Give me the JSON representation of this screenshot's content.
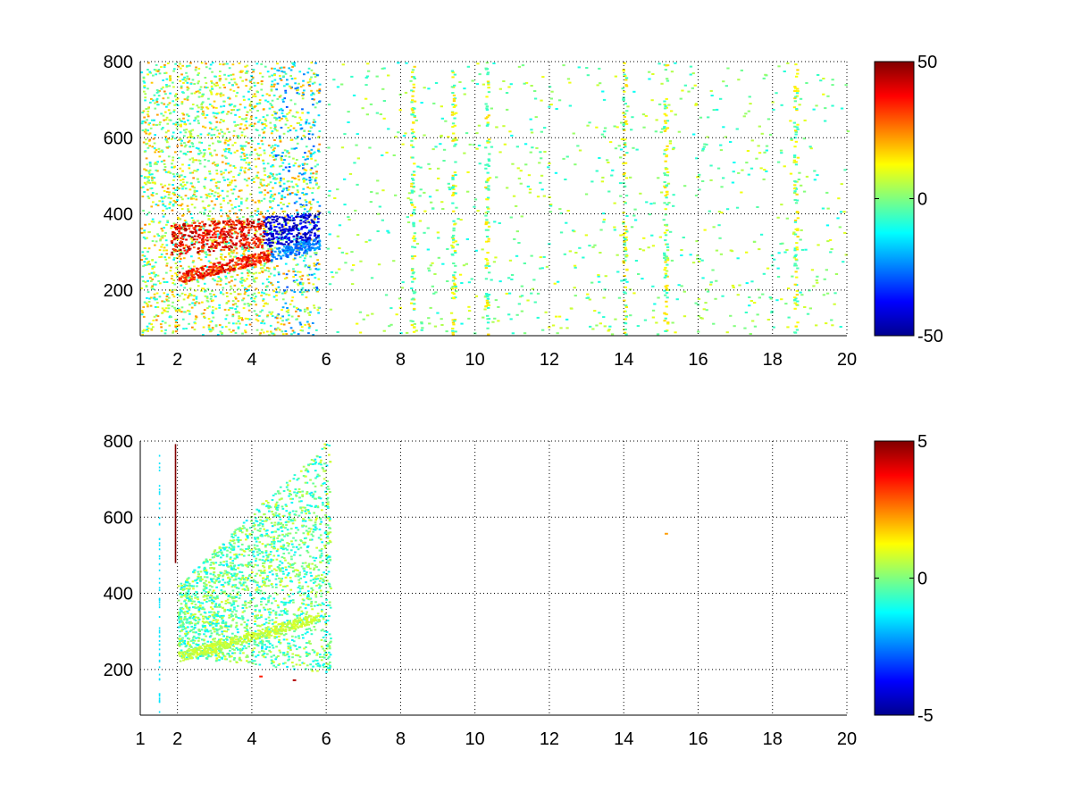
{
  "figure": {
    "background": "#ffffff",
    "colormap": "jet"
  },
  "chart_data": [
    {
      "type": "heatmap",
      "title": "",
      "xlabel": "",
      "ylabel": "",
      "xlim": [
        1,
        20
      ],
      "ylim": [
        80,
        800
      ],
      "x_ticks": [
        1,
        2,
        4,
        6,
        8,
        10,
        12,
        14,
        16,
        18,
        20
      ],
      "x_tick_labels": [
        "1",
        "2",
        "4",
        "6",
        "8",
        "10",
        "12",
        "14",
        "16",
        "18",
        "20"
      ],
      "y_ticks": [
        200,
        400,
        600,
        800
      ],
      "y_tick_labels": [
        "200",
        "400",
        "600",
        "800"
      ],
      "grid": true,
      "grid_style": "dotted",
      "colorbar": {
        "clim": [
          -50,
          50
        ],
        "tick_labels": [
          "50",
          "0",
          "-50"
        ],
        "tick_values": [
          50,
          0,
          -50
        ]
      },
      "features": {
        "upper_ridge": {
          "x_range": [
            1.8,
            5.8
          ],
          "y_center": 340,
          "value": 38,
          "sign_change_x": 4.3,
          "value_after": -42
        },
        "lower_ridge": {
          "x_range": [
            2.0,
            5.8
          ],
          "y_start": 230,
          "y_end": 320,
          "value": 35,
          "value_after": -25
        },
        "dense_noise_region": {
          "x_range": [
            1,
            6
          ],
          "y_range": [
            80,
            800
          ],
          "typical_value_range": [
            -15,
            25
          ]
        },
        "sparse_vertical_streaks": {
          "x_range": [
            6,
            20
          ],
          "typical_value_range": [
            -12,
            12
          ]
        },
        "notable_streaks_x": [
          15.1,
          18.6,
          14.0,
          10.3,
          8.3,
          9.4
        ]
      }
    },
    {
      "type": "heatmap",
      "title": "",
      "xlabel": "",
      "ylabel": "",
      "xlim": [
        1,
        20
      ],
      "ylim": [
        80,
        800
      ],
      "x_ticks": [
        1,
        2,
        4,
        6,
        8,
        10,
        12,
        14,
        16,
        18,
        20
      ],
      "x_tick_labels": [
        "1",
        "2",
        "4",
        "6",
        "8",
        "10",
        "12",
        "14",
        "16",
        "18",
        "20"
      ],
      "y_ticks": [
        200,
        400,
        600,
        800
      ],
      "y_tick_labels": [
        "200",
        "400",
        "600",
        "800"
      ],
      "grid": true,
      "grid_style": "dotted",
      "colorbar": {
        "clim": [
          -5,
          5
        ],
        "tick_labels": [
          "5",
          "0",
          "-5"
        ],
        "tick_values": [
          5,
          0,
          -5
        ]
      },
      "features": {
        "main_blob": {
          "x_range": [
            2.0,
            6.1
          ],
          "y_range": [
            170,
            800
          ],
          "typical_value_range": [
            -1.5,
            1.0
          ]
        },
        "dark_red_streak": {
          "x": 1.93,
          "y_range": [
            480,
            790
          ],
          "value": 5
        },
        "thin_streak_left": {
          "x": 1.5,
          "y_range": [
            80,
            760
          ],
          "value": -1.5
        },
        "isolated_points": [
          {
            "x": 15.1,
            "y": 555,
            "value": 2.2
          },
          {
            "x": 4.2,
            "y": 180,
            "value": 3.5
          },
          {
            "x": 5.1,
            "y": 170,
            "value": 4.5
          }
        ]
      }
    }
  ]
}
